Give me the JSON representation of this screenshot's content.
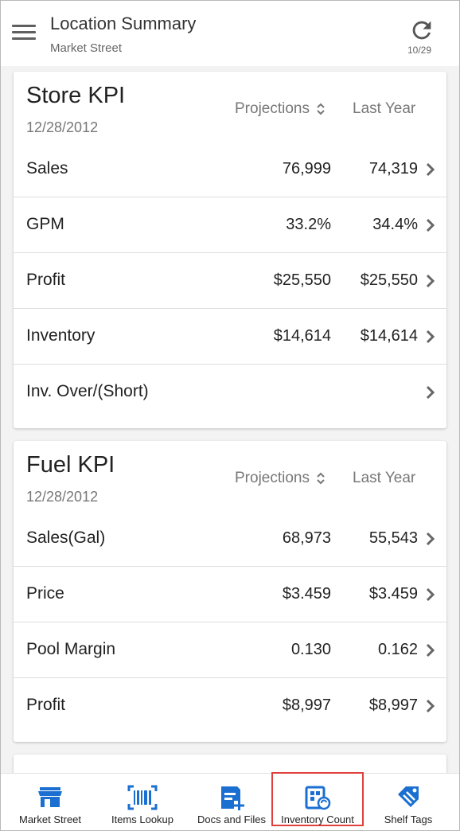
{
  "header": {
    "title": "Location Summary",
    "subtitle": "Market Street",
    "refresh_count": "10/29"
  },
  "store_kpi": {
    "title": "Store KPI",
    "date": "12/28/2012",
    "col_projections": "Projections",
    "col_last_year": "Last Year",
    "rows": [
      {
        "label": "Sales",
        "projection": "76,999",
        "last_year": "74,319"
      },
      {
        "label": "GPM",
        "projection": "33.2%",
        "last_year": "34.4%"
      },
      {
        "label": "Profit",
        "projection": "$25,550",
        "last_year": "$25,550"
      },
      {
        "label": "Inventory",
        "projection": "$14,614",
        "last_year": "$14,614"
      },
      {
        "label": "Inv. Over/(Short)",
        "projection": "",
        "last_year": ""
      }
    ]
  },
  "fuel_kpi": {
    "title": "Fuel KPI",
    "date": "12/28/2012",
    "col_projections": "Projections",
    "col_last_year": "Last Year",
    "rows": [
      {
        "label": "Sales(Gal)",
        "projection": "68,973",
        "last_year": "55,543"
      },
      {
        "label": "Price",
        "projection": "$3.459",
        "last_year": "$3.459"
      },
      {
        "label": "Pool Margin",
        "projection": "0.130",
        "last_year": "0.162"
      },
      {
        "label": "Profit",
        "projection": "$8,997",
        "last_year": "$8,997"
      }
    ]
  },
  "bottom_nav": {
    "items": [
      {
        "label": "Market Street",
        "icon": "store-icon"
      },
      {
        "label": "Items Lookup",
        "icon": "barcode-icon"
      },
      {
        "label": "Docs and Files",
        "icon": "doc-add-icon"
      },
      {
        "label": "Inventory Count",
        "icon": "inventory-count-icon"
      },
      {
        "label": "Shelf Tags",
        "icon": "tag-icon"
      }
    ]
  },
  "colors": {
    "nav_icon": "#1a6fd1",
    "highlight_border": "#e0403d"
  }
}
